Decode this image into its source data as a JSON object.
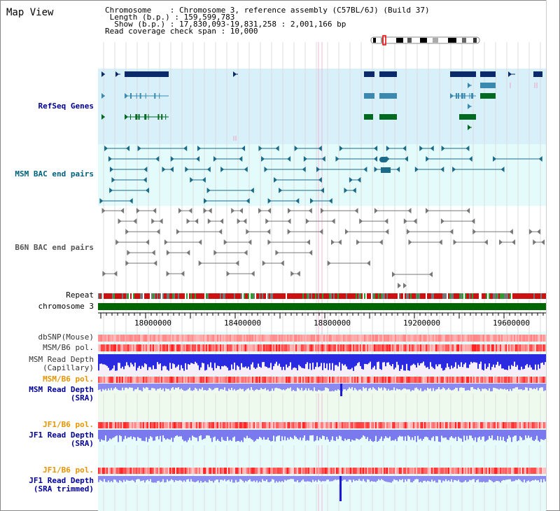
{
  "title": "Map View",
  "info": {
    "line1": "Chromosome    : Chromosome 3, reference assembly (C57BL/6J) (Build 37)",
    "line2": " Length (b.p.) : 159,599,783",
    "line3": "  Show (b.p.) : 17,830,093-19,831,258 : 2,001,166 bp",
    "line4": "Read coverage check span : 10,000"
  },
  "tracks": {
    "refseq": "RefSeq Genes",
    "msm_bac": "MSM BAC end pairs",
    "b6n_bac": "B6N BAC end pairs",
    "repeat": "Repeat",
    "chromosome": "chromosome 3",
    "dbsnp": "dbSNP(Mouse)",
    "msm_pol": "MSM/B6 pol.",
    "msm_depth_cap": "MSM Read Depth\n(Capillary)",
    "msm_pol2": "MSM/B6 pol.",
    "msm_depth_sra": "MSM Read Depth\n(SRA)",
    "jf1_pol": "JF1/B6 pol.",
    "jf1_depth_sra": "JF1 Read Depth\n(SRA)",
    "jf1_pol2": "JF1/B6 pol.",
    "jf1_depth_trim": "JF1 Read Depth\n(SRA trimmed)"
  },
  "axis": {
    "ticks": [
      "18000000",
      "18400000",
      "18800000",
      "19200000",
      "19600000"
    ]
  },
  "colors": {
    "refseq_bg": "#d8f0fa",
    "bac_bg": "#e4fbfb",
    "navy": "#000099",
    "teal": "#00607a",
    "orange": "#e89400",
    "chrom_green": "#006600",
    "depth_blue": "#2222dd",
    "depth_light": "#8888ff"
  }
}
